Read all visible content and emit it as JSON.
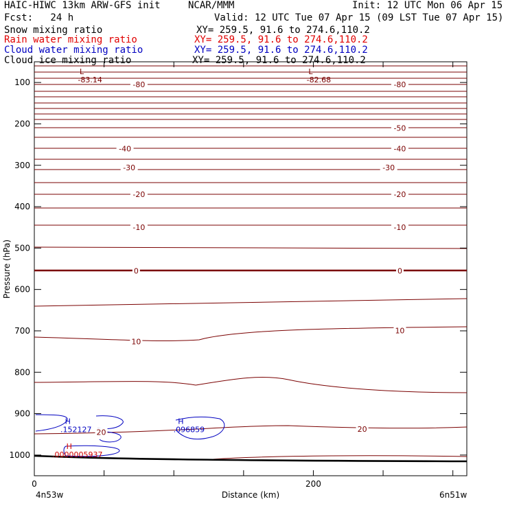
{
  "header": {
    "title_left": "HAIC-HIWC 13km ARW-GFS init",
    "org": "NCAR/MMM",
    "init": "Init: 12 UTC Mon 06 Apr 15",
    "fcst": "Fcst:   24 h",
    "valid": "Valid: 12 UTC Tue 07 Apr 15 (09 LST Tue 07 Apr 15)",
    "fields": [
      {
        "name": "Snow mixing ratio",
        "xy": "XY= 259.5, 91.6 to 274.6,110.2",
        "color": "#000000"
      },
      {
        "name": "Rain water mixing ratio",
        "xy": "XY= 259.5, 91.6 to 274.6,110.2",
        "color": "#e00000"
      },
      {
        "name": "Cloud water mixing ratio",
        "xy": "XY= 259.5, 91.6 to 274.6,110.2",
        "color": "#0000c0"
      },
      {
        "name": "Cloud ice mixing ratio",
        "xy": "XY= 259.5, 91.6 to 274.6,110.2",
        "color": "#000000"
      }
    ]
  },
  "chart_data": {
    "type": "contour",
    "xlabel": "Distance (km)",
    "ylabel": "Pressure (hPa)",
    "x_ticks": [
      0,
      200
    ],
    "y_ticks": [
      100,
      200,
      300,
      400,
      500,
      600,
      700,
      800,
      900,
      1000
    ],
    "xlim": [
      0,
      310
    ],
    "ylim_top": 50,
    "ylim_bottom": 1050,
    "endpoint_left": "4n53w",
    "endpoint_right": "6n51w",
    "contour_color": "#7a0000",
    "contour_labels": [
      {
        "text": "-80",
        "x": 75,
        "p": 105
      },
      {
        "text": "-80",
        "x": 262,
        "p": 105
      },
      {
        "text": "-50",
        "x": 262,
        "p": 210
      },
      {
        "text": "-40",
        "x": 65,
        "p": 260
      },
      {
        "text": "-40",
        "x": 262,
        "p": 260
      },
      {
        "text": "-30",
        "x": 68,
        "p": 305
      },
      {
        "text": "-30",
        "x": 254,
        "p": 305
      },
      {
        "text": "-20",
        "x": 75,
        "p": 370
      },
      {
        "text": "-20",
        "x": 262,
        "p": 370
      },
      {
        "text": "-10",
        "x": 75,
        "p": 450
      },
      {
        "text": "-10",
        "x": 262,
        "p": 450
      },
      {
        "text": "0",
        "x": 73,
        "p": 555
      },
      {
        "text": "0",
        "x": 262,
        "p": 555
      },
      {
        "text": "10",
        "x": 73,
        "p": 726
      },
      {
        "text": "10",
        "x": 262,
        "p": 699
      },
      {
        "text": "20",
        "x": 235,
        "p": 937
      },
      {
        "text": "20",
        "x": 48,
        "p": 945
      }
    ],
    "extrema": [
      {
        "letter": "L",
        "value": "-83.14",
        "x": 34,
        "p": 80
      },
      {
        "letter": "L",
        "value": "-82.68",
        "x": 198,
        "p": 80
      },
      {
        "letter": "H",
        "value": ".152127",
        "x": 24,
        "p": 925
      },
      {
        "letter": "H",
        "value": ".096859",
        "x": 105,
        "p": 925
      },
      {
        "letter": "H",
        "value": ".0000005937",
        "x": 25,
        "p": 985
      }
    ]
  }
}
